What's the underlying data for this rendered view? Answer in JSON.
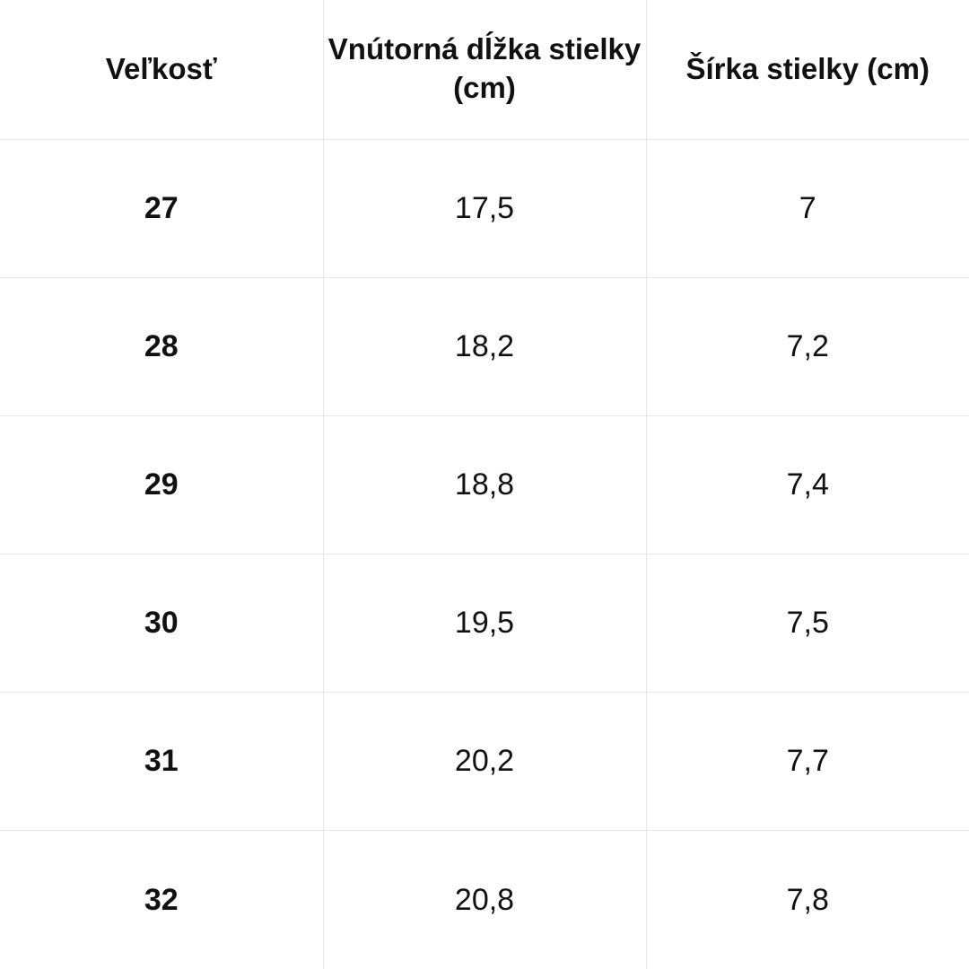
{
  "table": {
    "headers": [
      "Veľkosť",
      "Vnútorná dĺžka stielky (cm)",
      "Šírka stielky (cm)"
    ],
    "rows": [
      [
        "27",
        "17,5",
        "7"
      ],
      [
        "28",
        "18,2",
        "7,2"
      ],
      [
        "29",
        "18,8",
        "7,4"
      ],
      [
        "30",
        "19,5",
        "7,5"
      ],
      [
        "31",
        "20,2",
        "7,7"
      ],
      [
        "32",
        "20,8",
        "7,8"
      ]
    ]
  }
}
